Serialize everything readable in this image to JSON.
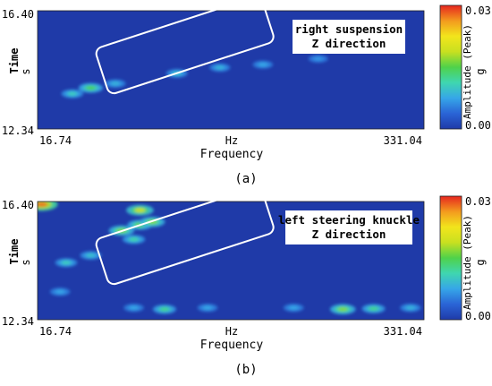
{
  "panels": [
    {
      "caption": "(a)",
      "label_line1": "right suspension",
      "label_line2": "Z direction",
      "ylabel": "Time",
      "yunit": "s",
      "xlabel": "Frequency",
      "xunit": "Hz",
      "y_ticks": [
        "16.40",
        "12.34"
      ],
      "x_ticks": [
        "16.74",
        "331.04"
      ],
      "colorbar_title": "Amplitude (Peak)",
      "colorbar_unit": "g",
      "colorbar_ticks": [
        "0.03",
        "0.00"
      ]
    },
    {
      "caption": "(b)",
      "label_line1": "left steering knuckle",
      "label_line2": "Z direction",
      "ylabel": "Time",
      "yunit": "s",
      "xlabel": "Frequency",
      "xunit": "Hz",
      "y_ticks": [
        "16.40",
        "12.34"
      ],
      "x_ticks": [
        "16.74",
        "331.04"
      ],
      "colorbar_title": "Amplitude (Peak)",
      "colorbar_unit": "g",
      "colorbar_ticks": [
        "0.03",
        "0.00"
      ]
    }
  ],
  "colors": {
    "background": "#1f3aa8",
    "colormap": [
      "#1f3aa8",
      "#2a64d6",
      "#36a6e8",
      "#3fd6b0",
      "#4fd24a",
      "#c8e020",
      "#f2e51c",
      "#f39a1e",
      "#e6261f"
    ]
  },
  "chart_data": [
    {
      "type": "heatmap",
      "xlabel": "Frequency",
      "xunit": "Hz",
      "ylabel": "Time",
      "yunit": "s",
      "xlim": [
        16.74,
        331.04
      ],
      "ylim": [
        12.34,
        16.4
      ],
      "zlim": [
        0.0,
        0.03
      ],
      "z_label": "Amplitude (Peak)",
      "z_unit": "g",
      "hotspots": [
        {
          "f": 60,
          "t": 13.75,
          "amp": 0.011
        },
        {
          "f": 45,
          "t": 13.55,
          "amp": 0.007
        },
        {
          "f": 80,
          "t": 13.9,
          "amp": 0.005
        },
        {
          "f": 130,
          "t": 14.25,
          "amp": 0.006
        },
        {
          "f": 165,
          "t": 14.45,
          "amp": 0.005
        },
        {
          "f": 200,
          "t": 14.55,
          "amp": 0.004
        },
        {
          "f": 245,
          "t": 14.75,
          "amp": 0.003
        }
      ]
    },
    {
      "type": "heatmap",
      "xlabel": "Frequency",
      "xunit": "Hz",
      "ylabel": "Time",
      "yunit": "s",
      "xlim": [
        16.74,
        331.04
      ],
      "ylim": [
        12.34,
        16.4
      ],
      "zlim": [
        0.0,
        0.03
      ],
      "z_label": "Amplitude (Peak)",
      "z_unit": "g",
      "hotspots": [
        {
          "f": 20,
          "t": 16.3,
          "amp": 0.024
        },
        {
          "f": 100,
          "t": 16.1,
          "amp": 0.016
        },
        {
          "f": 100,
          "t": 15.6,
          "amp": 0.012
        },
        {
          "f": 85,
          "t": 15.4,
          "amp": 0.013
        },
        {
          "f": 110,
          "t": 15.7,
          "amp": 0.013
        },
        {
          "f": 95,
          "t": 15.1,
          "amp": 0.008
        },
        {
          "f": 40,
          "t": 14.3,
          "amp": 0.007
        },
        {
          "f": 60,
          "t": 14.55,
          "amp": 0.006
        },
        {
          "f": 120,
          "t": 12.7,
          "amp": 0.009
        },
        {
          "f": 95,
          "t": 12.75,
          "amp": 0.004
        },
        {
          "f": 155,
          "t": 12.75,
          "amp": 0.004
        },
        {
          "f": 265,
          "t": 12.7,
          "amp": 0.013
        },
        {
          "f": 290,
          "t": 12.72,
          "amp": 0.009
        },
        {
          "f": 225,
          "t": 12.75,
          "amp": 0.004
        },
        {
          "f": 320,
          "t": 12.75,
          "amp": 0.005
        },
        {
          "f": 35,
          "t": 13.3,
          "amp": 0.004
        }
      ]
    }
  ]
}
